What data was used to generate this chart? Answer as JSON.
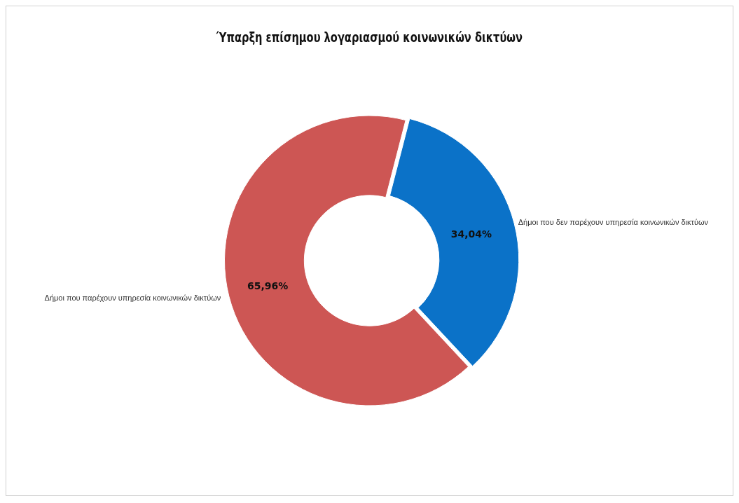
{
  "chart_data": {
    "type": "donut",
    "title": "Ύπαρξη επίσημου λογαριασμού κοινωνικών δικτύων",
    "categories": [
      "Δήμοι που παρέχουν υπηρεσία κοινωνικών δικτύων",
      "Δήμοι που δεν παρέχουν υπηρεσία κοινωνικών δικτύων"
    ],
    "values": [
      65.96,
      34.04
    ],
    "colors": [
      "#cd5654",
      "#0b72c8"
    ],
    "value_labels": [
      "65,96%",
      "34,04%"
    ],
    "legend": false
  }
}
